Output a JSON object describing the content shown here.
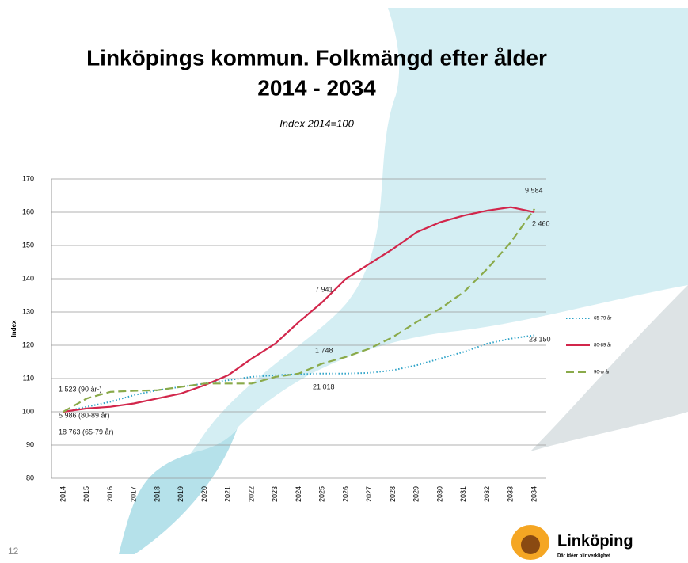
{
  "page_number": "12",
  "logo": {
    "name": "Linköping",
    "tagline": "Där idéer blir verklighet"
  },
  "chart_data": {
    "type": "line",
    "title": [
      "Linköpings kommun. Folkmängd efter ålder",
      "2014 - 2034"
    ],
    "subtitle": "Index 2014=100",
    "y_label": "Index",
    "categories": [
      "2014",
      "2015",
      "2016",
      "2017",
      "2018",
      "2019",
      "2020",
      "2021",
      "2022",
      "2023",
      "2024",
      "2025",
      "2026",
      "2027",
      "2028",
      "2029",
      "2030",
      "2031",
      "2032",
      "2033",
      "2034"
    ],
    "series": [
      {
        "name": "65-79 år",
        "color": "#2ea3c8",
        "style": "dotted",
        "values": [
          100,
          101.5,
          103,
          105,
          106.5,
          107.5,
          108.5,
          109.5,
          110.5,
          111,
          111.3,
          111.5,
          111.5,
          111.7,
          112.5,
          114,
          116,
          118,
          120.5,
          122,
          123
        ]
      },
      {
        "name": "80-89 år",
        "color": "#d2264b",
        "style": "solid",
        "values": [
          100,
          101,
          101.5,
          102.5,
          104,
          105.5,
          108,
          111,
          116,
          120.5,
          127,
          133,
          140,
          144.5,
          149,
          154,
          157,
          159,
          160.5,
          161.5,
          160
        ]
      },
      {
        "name": "90-w år",
        "color": "#8aaa4a",
        "style": "dashed",
        "values": [
          100,
          104,
          106,
          106.3,
          106.5,
          107.5,
          108.5,
          108.5,
          108.5,
          110.5,
          111.5,
          114.5,
          116.5,
          119,
          122.5,
          127,
          131,
          136,
          143,
          151,
          161
        ]
      }
    ],
    "annotations": [
      "9 584",
      "2 460",
      "7 941",
      "1 748",
      "23 150",
      "21 018",
      "1 523 (90 år-)",
      "5 986 (80-89 år)",
      "18 763 (65-79 år)"
    ],
    "ylim": [
      80,
      170
    ],
    "yticks": [
      80,
      90,
      100,
      110,
      120,
      130,
      140,
      150,
      160,
      170
    ],
    "grid": true
  }
}
